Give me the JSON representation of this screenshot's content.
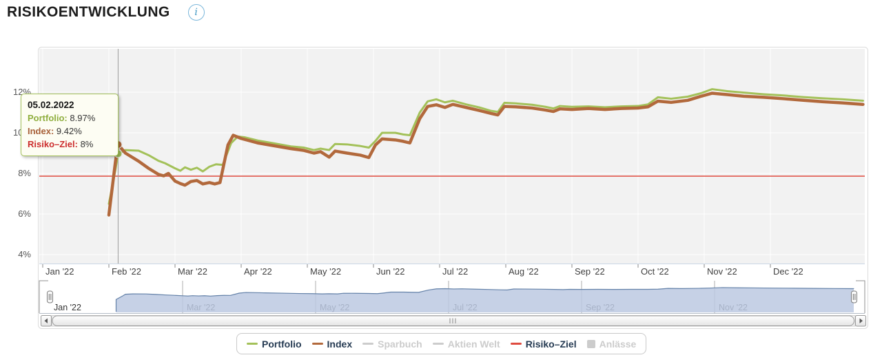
{
  "header": {
    "title": "RISIKOENTWICKLUNG",
    "info_glyph": "i"
  },
  "tooltip": {
    "date": "05.02.2022",
    "rows": [
      {
        "label": "Portfolio",
        "value": "8.97%",
        "color": "#8fae3e"
      },
      {
        "label": "Index",
        "value": "9.42%",
        "color": "#a8613a"
      },
      {
        "label": "Risiko–Ziel",
        "value": "8%",
        "color": "#cc2d2d"
      }
    ]
  },
  "chart_data": {
    "type": "line",
    "title": "RISIKOENTWICKLUNG",
    "x_unit": "months_since_2022-01-01",
    "y_unit": "percent_risk",
    "ylim": [
      3.6,
      14.2
    ],
    "grid": true,
    "plot_background": "#f2f2f2",
    "yticks": [
      {
        "value": 4,
        "label": "4%"
      },
      {
        "value": 6,
        "label": "6%"
      },
      {
        "value": 8,
        "label": "8%"
      },
      {
        "value": 10,
        "label": "10%"
      },
      {
        "value": 12,
        "label": "12%"
      }
    ],
    "xticks": [
      {
        "m": 0,
        "label": "Jan '22"
      },
      {
        "m": 1,
        "label": "Feb '22"
      },
      {
        "m": 2,
        "label": "Mar '22"
      },
      {
        "m": 3,
        "label": "Apr '22"
      },
      {
        "m": 4,
        "label": "May '22"
      },
      {
        "m": 5,
        "label": "Jun '22"
      },
      {
        "m": 6,
        "label": "Jul '22"
      },
      {
        "m": 7,
        "label": "Aug '22"
      },
      {
        "m": 8,
        "label": "Sep '22"
      },
      {
        "m": 9,
        "label": "Oct '22"
      },
      {
        "m": 10,
        "label": "Nov '22"
      },
      {
        "m": 11,
        "label": "Dec '22"
      }
    ],
    "risk_target": {
      "name": "Risiko–Ziel",
      "value": 8,
      "color": "#e0493c"
    },
    "marked_point": {
      "m": 1.14,
      "date": "05.02.2022",
      "portfolio": 8.97,
      "index": 9.42
    },
    "series": [
      {
        "name": "Portfolio",
        "color": "#a3c159",
        "width": 3,
        "visible": true,
        "points": [
          [
            1.0,
            6.5
          ],
          [
            1.1,
            8.2
          ],
          [
            1.14,
            8.97
          ],
          [
            1.25,
            9.15
          ],
          [
            1.45,
            9.12
          ],
          [
            1.6,
            8.9
          ],
          [
            1.75,
            8.62
          ],
          [
            1.85,
            8.5
          ],
          [
            2.0,
            8.25
          ],
          [
            2.08,
            8.13
          ],
          [
            2.15,
            8.3
          ],
          [
            2.24,
            8.18
          ],
          [
            2.33,
            8.28
          ],
          [
            2.42,
            8.1
          ],
          [
            2.52,
            8.33
          ],
          [
            2.62,
            8.45
          ],
          [
            2.72,
            8.42
          ],
          [
            2.85,
            9.5
          ],
          [
            2.95,
            9.82
          ],
          [
            3.05,
            9.78
          ],
          [
            3.25,
            9.62
          ],
          [
            3.5,
            9.48
          ],
          [
            3.75,
            9.33
          ],
          [
            3.95,
            9.27
          ],
          [
            4.1,
            9.15
          ],
          [
            4.2,
            9.22
          ],
          [
            4.33,
            9.15
          ],
          [
            4.42,
            9.45
          ],
          [
            4.6,
            9.43
          ],
          [
            4.8,
            9.35
          ],
          [
            4.93,
            9.27
          ],
          [
            5.03,
            9.6
          ],
          [
            5.13,
            10.0
          ],
          [
            5.33,
            10.0
          ],
          [
            5.45,
            9.92
          ],
          [
            5.55,
            9.88
          ],
          [
            5.7,
            11.0
          ],
          [
            5.82,
            11.55
          ],
          [
            5.95,
            11.65
          ],
          [
            6.08,
            11.5
          ],
          [
            6.2,
            11.58
          ],
          [
            6.4,
            11.4
          ],
          [
            6.6,
            11.25
          ],
          [
            6.78,
            11.08
          ],
          [
            6.88,
            11.03
          ],
          [
            6.98,
            11.48
          ],
          [
            7.15,
            11.45
          ],
          [
            7.4,
            11.38
          ],
          [
            7.6,
            11.28
          ],
          [
            7.72,
            11.2
          ],
          [
            7.82,
            11.32
          ],
          [
            8.0,
            11.28
          ],
          [
            8.25,
            11.3
          ],
          [
            8.5,
            11.26
          ],
          [
            8.75,
            11.3
          ],
          [
            9.0,
            11.32
          ],
          [
            9.15,
            11.4
          ],
          [
            9.3,
            11.75
          ],
          [
            9.5,
            11.68
          ],
          [
            9.75,
            11.78
          ],
          [
            9.95,
            11.95
          ],
          [
            10.12,
            12.15
          ],
          [
            10.35,
            12.05
          ],
          [
            10.6,
            11.98
          ],
          [
            10.9,
            11.9
          ],
          [
            11.2,
            11.84
          ],
          [
            11.5,
            11.76
          ],
          [
            11.8,
            11.7
          ],
          [
            12.1,
            11.65
          ],
          [
            12.4,
            11.58
          ]
        ]
      },
      {
        "name": "Index",
        "color": "#b2693c",
        "width": 4.5,
        "visible": true,
        "points": [
          [
            1.0,
            5.95
          ],
          [
            1.1,
            8.6
          ],
          [
            1.14,
            9.42
          ],
          [
            1.25,
            9.0
          ],
          [
            1.45,
            8.6
          ],
          [
            1.6,
            8.25
          ],
          [
            1.75,
            7.95
          ],
          [
            1.83,
            7.88
          ],
          [
            1.9,
            8.0
          ],
          [
            2.0,
            7.62
          ],
          [
            2.08,
            7.5
          ],
          [
            2.15,
            7.42
          ],
          [
            2.24,
            7.6
          ],
          [
            2.33,
            7.65
          ],
          [
            2.42,
            7.48
          ],
          [
            2.52,
            7.55
          ],
          [
            2.6,
            7.48
          ],
          [
            2.68,
            7.55
          ],
          [
            2.8,
            9.4
          ],
          [
            2.88,
            9.88
          ],
          [
            3.0,
            9.72
          ],
          [
            3.25,
            9.5
          ],
          [
            3.5,
            9.36
          ],
          [
            3.75,
            9.22
          ],
          [
            3.95,
            9.13
          ],
          [
            4.1,
            9.0
          ],
          [
            4.2,
            9.07
          ],
          [
            4.33,
            8.8
          ],
          [
            4.42,
            9.1
          ],
          [
            4.6,
            9.0
          ],
          [
            4.8,
            8.9
          ],
          [
            4.93,
            8.78
          ],
          [
            5.03,
            9.4
          ],
          [
            5.13,
            9.7
          ],
          [
            5.33,
            9.65
          ],
          [
            5.45,
            9.58
          ],
          [
            5.55,
            9.5
          ],
          [
            5.7,
            10.7
          ],
          [
            5.82,
            11.3
          ],
          [
            5.95,
            11.38
          ],
          [
            6.08,
            11.25
          ],
          [
            6.2,
            11.4
          ],
          [
            6.4,
            11.25
          ],
          [
            6.6,
            11.1
          ],
          [
            6.78,
            10.95
          ],
          [
            6.88,
            10.88
          ],
          [
            6.98,
            11.3
          ],
          [
            7.15,
            11.28
          ],
          [
            7.4,
            11.22
          ],
          [
            7.6,
            11.12
          ],
          [
            7.72,
            11.05
          ],
          [
            7.82,
            11.18
          ],
          [
            8.0,
            11.15
          ],
          [
            8.25,
            11.2
          ],
          [
            8.5,
            11.15
          ],
          [
            8.75,
            11.2
          ],
          [
            9.0,
            11.22
          ],
          [
            9.15,
            11.28
          ],
          [
            9.3,
            11.56
          ],
          [
            9.5,
            11.5
          ],
          [
            9.75,
            11.6
          ],
          [
            9.95,
            11.8
          ],
          [
            10.12,
            11.95
          ],
          [
            10.35,
            11.88
          ],
          [
            10.6,
            11.8
          ],
          [
            10.9,
            11.75
          ],
          [
            11.2,
            11.68
          ],
          [
            11.5,
            11.6
          ],
          [
            11.8,
            11.53
          ],
          [
            12.1,
            11.47
          ],
          [
            12.4,
            11.4
          ]
        ]
      },
      {
        "name": "Sparbuch",
        "color": "#cccccc",
        "visible": false,
        "points": []
      },
      {
        "name": "Aktien Welt",
        "color": "#cccccc",
        "visible": false,
        "points": []
      },
      {
        "name": "Anlässe",
        "color": "#cccccc",
        "visible": false,
        "points": []
      }
    ],
    "navigator": {
      "fill": "#bcc9e2",
      "line": "#6381a8",
      "xticks": [
        {
          "m": 0,
          "label": "Jan '22"
        },
        {
          "m": 2,
          "label": "Mar '22"
        },
        {
          "m": 4,
          "label": "May '22"
        },
        {
          "m": 6,
          "label": "Jul '22"
        },
        {
          "m": 8,
          "label": "Sep '22"
        },
        {
          "m": 10,
          "label": "Nov '22"
        }
      ]
    },
    "legend_position": "bottom-center"
  },
  "legend": {
    "items": [
      {
        "label": "Portfolio",
        "marker": "line",
        "color": "#a3c159",
        "active": true
      },
      {
        "label": "Index",
        "marker": "line",
        "color": "#b2693c",
        "active": true
      },
      {
        "label": "Sparbuch",
        "marker": "line",
        "color": "#cccccc",
        "active": false
      },
      {
        "label": "Aktien Welt",
        "marker": "line",
        "color": "#cccccc",
        "active": false
      },
      {
        "label": "Risiko–Ziel",
        "marker": "line",
        "color": "#df4b3f",
        "active": true
      },
      {
        "label": "Anlässe",
        "marker": "square",
        "color": "#cccccc",
        "active": false
      }
    ],
    "active_text_color": "#253a52",
    "inactive_text_color": "#cccccc"
  }
}
